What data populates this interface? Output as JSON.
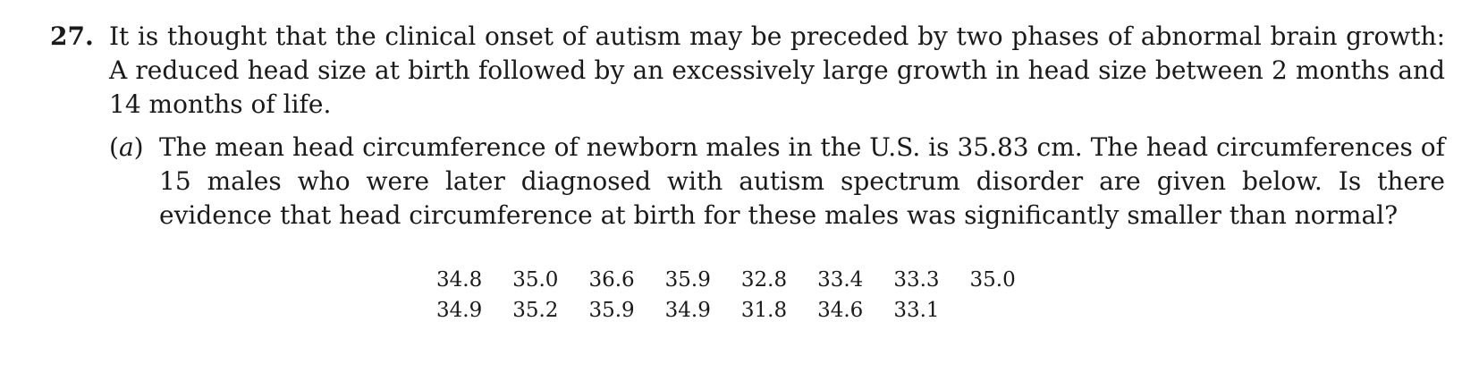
{
  "problem": {
    "number": "27.",
    "text": "It is thought that the clinical onset of autism may be preceded by two phases of abnormal brain growth: A reduced head size at birth followed by an excessively large growth in head size between 2 months and 14 months of life."
  },
  "part_a": {
    "label_open": "(",
    "label_letter": "a",
    "label_close": ")",
    "text": "The mean head circumference of newborn males in the U.S. is 35.83 cm. The head circumferences of 15 males who were later diagnosed with autism spectrum disorder are given below. Is there evidence that head circumference at birth for these males was significantly smaller than normal?"
  },
  "data": {
    "row1": [
      "34.8",
      "35.0",
      "36.6",
      "35.9",
      "32.8",
      "33.4",
      "33.3",
      "35.0"
    ],
    "row2": [
      "34.9",
      "35.2",
      "35.9",
      "34.9",
      "31.8",
      "34.6",
      "33.1"
    ]
  }
}
